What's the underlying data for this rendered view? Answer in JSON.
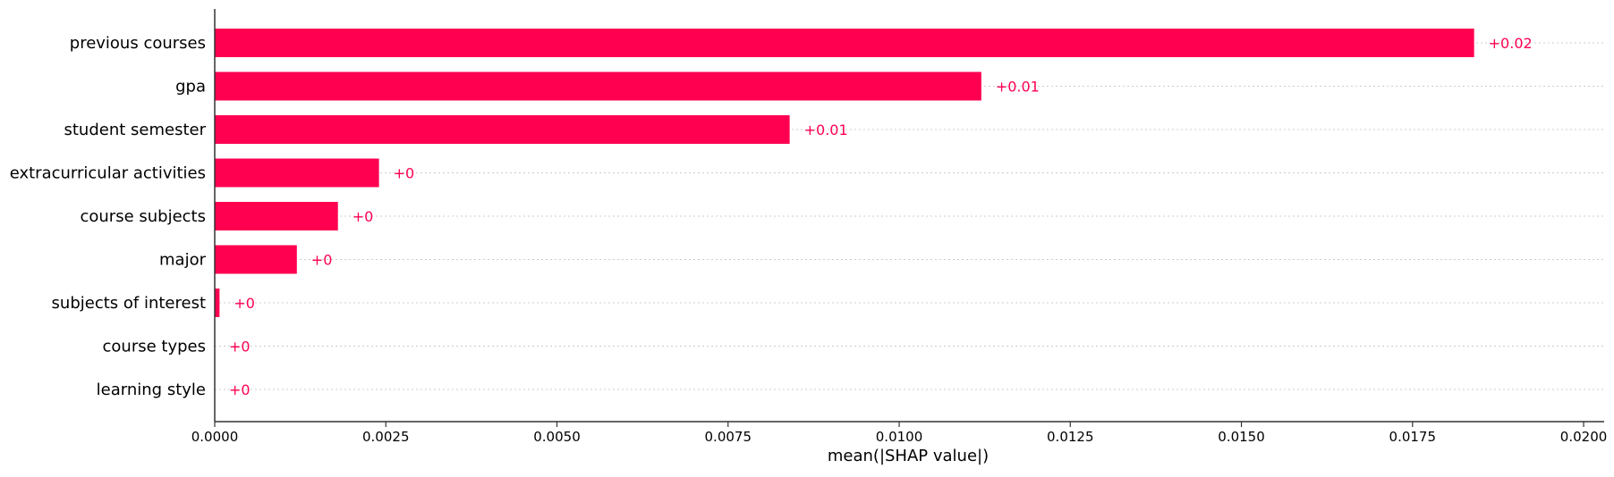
{
  "chart_data": {
    "type": "bar",
    "orientation": "horizontal",
    "title": "",
    "xlabel": "mean(|SHAP value|)",
    "ylabel": "",
    "xlim": [
      0,
      0.0203
    ],
    "xticks": [
      0.0,
      0.0025,
      0.005,
      0.0075,
      0.01,
      0.0125,
      0.015,
      0.0175,
      0.02
    ],
    "xtick_labels": [
      "0.0000",
      "0.0025",
      "0.0050",
      "0.0075",
      "0.0100",
      "0.0125",
      "0.0150",
      "0.0175",
      "0.0200"
    ],
    "categories": [
      "previous courses",
      "gpa",
      "student semester",
      "extracurricular activities",
      "course subjects",
      "major",
      "subjects of interest",
      "course types",
      "learning style"
    ],
    "values": [
      0.0184,
      0.0112,
      0.0084,
      0.0024,
      0.0018,
      0.0012,
      7e-05,
      0.0,
      0.0
    ],
    "data_labels": [
      "+0.02",
      "+0.01",
      "+0.01",
      "+0",
      "+0",
      "+0",
      "+0",
      "+0",
      "+0"
    ],
    "grid": "horizontal dotted lines per category",
    "legend": "none",
    "colors": {
      "bar": "#ff0051",
      "label": "#ff0051",
      "axis": "#333333",
      "grid": "#cccccc",
      "text": "#000000"
    }
  }
}
